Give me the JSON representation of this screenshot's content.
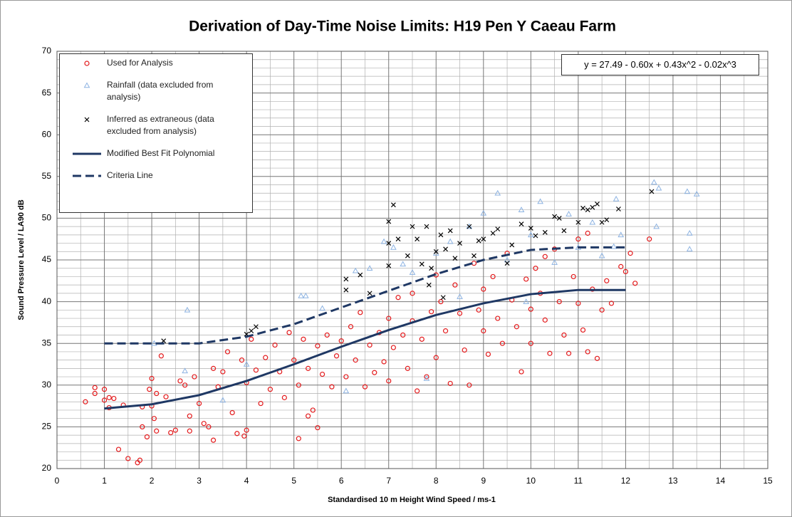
{
  "chart_data": {
    "type": "scatter",
    "title": "Derivation of Day-Time Noise Limits: H19 Pen Y Caeau Farm",
    "x_label": "Standardised 10 m Height Wind Speed / ms-1",
    "y_label": "Sound Pressure Level / LA90 dB",
    "annotation": "y = 27.49 - 0.60x + 0.43x^2 - 0.02x^3",
    "xlim": [
      0,
      15
    ],
    "xticks": [
      0,
      1,
      2,
      3,
      4,
      5,
      6,
      7,
      8,
      9,
      10,
      11,
      12,
      13,
      14,
      15
    ],
    "x_minor_ticks": [
      0.5,
      1.5,
      2.5,
      3.5,
      4.5,
      5.5,
      6.5,
      7.5,
      8.5,
      9.5,
      10.5,
      11.5,
      12.5,
      13.5,
      14.5
    ],
    "ylim": [
      20,
      70
    ],
    "yticks": [
      20,
      25,
      30,
      35,
      40,
      45,
      50,
      55,
      60,
      65,
      70
    ],
    "y_minor_ticks": [
      21,
      22,
      23,
      24,
      26,
      27,
      28,
      29,
      31,
      32,
      33,
      34,
      36,
      37,
      38,
      39,
      41,
      42,
      43,
      44,
      46,
      47,
      48,
      49,
      51,
      52,
      53,
      54,
      56,
      57,
      58,
      59,
      61,
      62,
      63,
      64,
      66,
      67,
      68,
      69
    ],
    "grid": true,
    "legend": "upper left",
    "series": [
      {
        "name": "Used for Analysis",
        "marker": "circle",
        "color": "#e31a1c",
        "x": [
          0.6,
          0.8,
          0.8,
          1,
          1,
          1.1,
          1.1,
          1.2,
          1.3,
          1.4,
          1.5,
          1.7,
          1.75,
          1.8,
          1.8,
          1.9,
          1.95,
          2,
          2,
          2.05,
          2.1,
          2.1,
          2.2,
          2.3,
          2.4,
          2.5,
          2.6,
          2.7,
          2.8,
          2.8,
          2.9,
          3,
          3.1,
          3.2,
          3.3,
          3.3,
          3.4,
          3.5,
          3.6,
          3.7,
          3.8,
          3.9,
          3.95,
          4,
          4,
          4.1,
          4.2,
          4.3,
          4.4,
          4.5,
          4.6,
          4.7,
          4.8,
          4.9,
          5,
          5.1,
          5.1,
          5.2,
          5.3,
          5.3,
          5.4,
          5.5,
          5.5,
          5.6,
          5.7,
          5.8,
          5.9,
          6,
          6.1,
          6.2,
          6.3,
          6.4,
          6.5,
          6.6,
          6.7,
          6.8,
          6.9,
          7,
          7,
          7.1,
          7.2,
          7.3,
          7.4,
          7.5,
          7.5,
          7.6,
          7.7,
          7.8,
          7.9,
          8,
          8,
          8.1,
          8.2,
          8.3,
          8.4,
          8.5,
          8.6,
          8.7,
          8.8,
          8.9,
          9,
          9,
          9.1,
          9.2,
          9.3,
          9.4,
          9.5,
          9.6,
          9.7,
          9.8,
          9.9,
          10,
          10,
          10.1,
          10.2,
          10.3,
          10.4,
          10.5,
          10.6,
          10.7,
          10.8,
          10.9,
          11,
          11,
          11.1,
          11.2,
          11.3,
          11.4,
          11.5,
          11.6,
          11.7,
          11.9,
          12,
          12.1,
          12.2,
          12.5,
          11.2,
          10.3
        ],
        "values": [
          28,
          29.7,
          29,
          29.5,
          28.2,
          28.5,
          27.3,
          28.4,
          22.3,
          27.6,
          21.2,
          20.7,
          21,
          27.4,
          25,
          23.8,
          29.5,
          30.8,
          27.5,
          26,
          24.5,
          29,
          33.5,
          28.6,
          24.3,
          24.6,
          30.5,
          30,
          24.5,
          26.3,
          31,
          27.8,
          25.4,
          25,
          23.4,
          32,
          29.8,
          31.6,
          34,
          26.7,
          24.2,
          33,
          23.9,
          24.6,
          30.3,
          35.5,
          31.8,
          27.8,
          33.3,
          29.5,
          34.8,
          31.6,
          28.5,
          36.3,
          33,
          23.6,
          30,
          35.5,
          26.3,
          32,
          27,
          24.9,
          34.7,
          31.3,
          36,
          29.8,
          33.5,
          35.3,
          31,
          37,
          33,
          38.7,
          29.8,
          34.8,
          31.5,
          36.3,
          32.8,
          30.5,
          38,
          34.5,
          40.5,
          36,
          32,
          41,
          37.7,
          29.3,
          35.5,
          31,
          38.8,
          43.2,
          33.3,
          40,
          36.5,
          30.2,
          42,
          38.6,
          34.2,
          30,
          44.6,
          39,
          36.5,
          41.5,
          33.7,
          43,
          38,
          35,
          45.8,
          40.2,
          37,
          31.6,
          42.7,
          39.1,
          35,
          44,
          41,
          37.8,
          33.8,
          46.3,
          40,
          36,
          33.8,
          43,
          39.8,
          47.5,
          36.6,
          34,
          41.5,
          33.2,
          39,
          42.5,
          39.8,
          44.2,
          43.6,
          45.8,
          42.2,
          47.5,
          48.2,
          45.4
        ]
      },
      {
        "name": "Rainfall (data excluded from analysis)",
        "marker": "triangle",
        "color": "#8db3e2",
        "x": [
          2.05,
          2.7,
          2.75,
          3.5,
          4,
          5.15,
          5.25,
          5.6,
          6.1,
          6.3,
          6.6,
          6.9,
          7.1,
          7.5,
          7.8,
          8,
          8.3,
          8.7,
          9,
          9.3,
          9.5,
          9.8,
          10,
          10.2,
          10.5,
          10.8,
          11,
          11.3,
          11.5,
          11.8,
          11.9,
          11.75,
          12.6,
          12.7,
          12.65,
          13.3,
          13.35,
          13.35,
          13.5,
          9.9,
          8.5,
          7.3
        ],
        "values": [
          35,
          31.7,
          39,
          28.2,
          32.5,
          40.7,
          40.7,
          39.2,
          29.3,
          43.7,
          44,
          47.2,
          46.5,
          43.5,
          30.8,
          45.8,
          47.2,
          49,
          50.6,
          53,
          45,
          51,
          48,
          52,
          44.7,
          50.5,
          46.5,
          49.5,
          45.5,
          52.3,
          48,
          46.6,
          54.3,
          53.6,
          49,
          53.2,
          48.2,
          46.3,
          52.9,
          40,
          40.6,
          44.5
        ]
      },
      {
        "name": "Inferred as extraneous (data excluded from analysis)",
        "marker": "x",
        "color": "#000000",
        "x": [
          2.25,
          4,
          4.1,
          4.2,
          6.1,
          6.1,
          6.4,
          6.6,
          7,
          7,
          7,
          7.1,
          7.2,
          7.4,
          7.5,
          7.6,
          7.7,
          7.8,
          7.9,
          8,
          8.1,
          8.2,
          8.3,
          8.4,
          8.5,
          8.7,
          8.8,
          8.9,
          9,
          9.2,
          9.3,
          9.5,
          9.6,
          9.8,
          10,
          10.1,
          10.3,
          10.5,
          10.6,
          10.7,
          11,
          11.1,
          11.2,
          11.3,
          11.4,
          11.5,
          11.6,
          11.85,
          12.55,
          7.85,
          8.15
        ],
        "values": [
          35.3,
          36.1,
          36.5,
          37,
          42.7,
          41.4,
          43.2,
          41,
          49.6,
          47,
          44.3,
          51.6,
          47.5,
          45.5,
          49,
          47.5,
          44.5,
          49,
          44,
          46,
          48,
          46.3,
          48.5,
          45.2,
          47,
          49,
          45.5,
          47.3,
          47.5,
          48.2,
          48.7,
          44.6,
          46.8,
          49.3,
          48.8,
          47.9,
          48.3,
          50.2,
          50,
          48.5,
          49.5,
          51.2,
          51,
          51.3,
          51.7,
          49.5,
          49.8,
          51.1,
          53.2,
          42,
          40.5
        ]
      },
      {
        "name": "Modified Best Fit Polynomial",
        "marker": "line",
        "color": "#1f3864",
        "dash": false,
        "x": [
          1,
          2,
          3,
          4,
          5,
          6,
          7,
          8,
          9,
          10,
          11,
          12
        ],
        "values": [
          27.2,
          27.7,
          28.8,
          30.5,
          32.5,
          34.6,
          36.6,
          38.4,
          39.8,
          40.9,
          41.4,
          41.4
        ]
      },
      {
        "name": "Criteria Line",
        "marker": "line",
        "color": "#1f3864",
        "dash": true,
        "x": [
          1,
          2,
          3,
          4,
          5,
          6,
          7,
          8,
          9,
          10,
          11,
          12
        ],
        "values": [
          35,
          35,
          35,
          35.8,
          37.3,
          39.3,
          41.3,
          43.3,
          45,
          46.2,
          46.5,
          46.5
        ]
      }
    ]
  }
}
